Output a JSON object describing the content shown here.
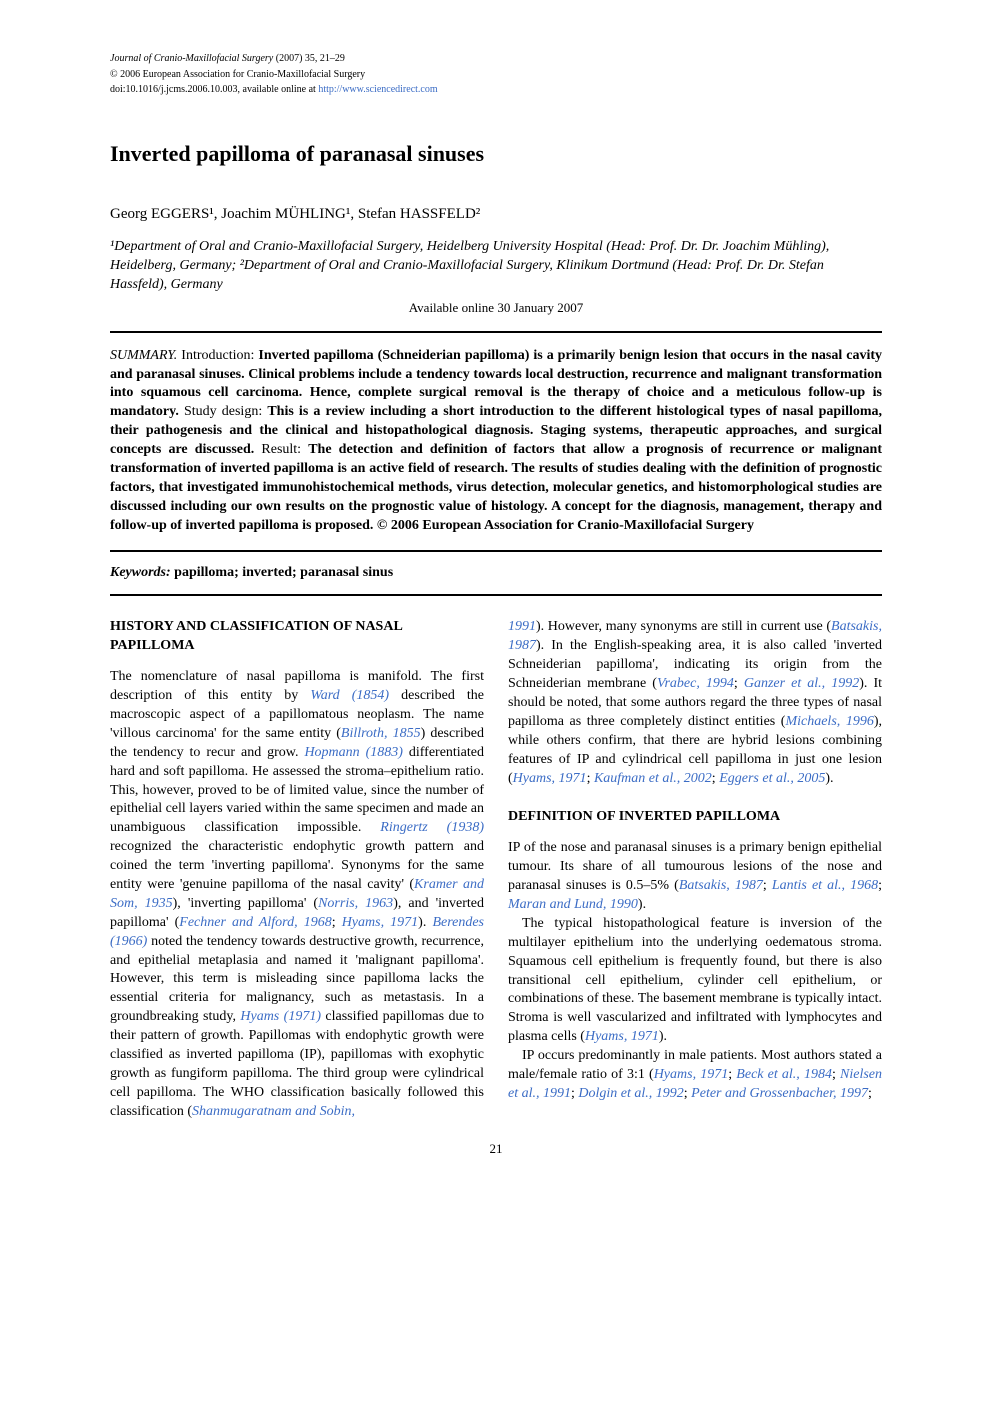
{
  "journal_header": {
    "journal_name": "Journal of Cranio-Maxillofacial Surgery",
    "citation": "(2007) 35, 21–29",
    "copyright": "© 2006 European Association for Cranio-Maxillofacial Surgery",
    "doi_prefix": "doi:10.1016/j.jcms.2006.10.003, available online at ",
    "doi_link": "http://www.sciencedirect.com"
  },
  "article": {
    "title": "Inverted papilloma of paranasal sinuses",
    "authors": "Georg EGGERS¹, Joachim MÜHLING¹, Stefan HASSFELD²",
    "affiliations": "¹Department of Oral and Cranio-Maxillofacial Surgery, Heidelberg University Hospital (Head: Prof. Dr. Dr. Joachim Mühling), Heidelberg, Germany; ²Department of Oral and Cranio-Maxillofacial Surgery, Klinikum Dortmund (Head: Prof. Dr. Dr. Stefan Hassfeld), Germany",
    "available_online": "Available online 30 January 2007"
  },
  "summary": {
    "label1": "SUMMARY.",
    "intro_label": "Introduction:",
    "intro_text": "Inverted papilloma (Schneiderian papilloma) is a primarily benign lesion that occurs in the nasal cavity and paranasal sinuses. Clinical problems include a tendency towards local destruction, recurrence and malignant transformation into squamous cell carcinoma. Hence, complete surgical removal is the therapy of choice and a meticulous follow-up is mandatory.",
    "study_label": "Study design:",
    "study_text": "This is a review including a short introduction to the different histological types of nasal papilloma, their pathogenesis and the clinical and histopathological diagnosis. Staging systems, therapeutic approaches, and surgical concepts are discussed.",
    "result_label": "Result:",
    "result_text": "The detection and definition of factors that allow a prognosis of recurrence or malignant transformation of inverted papilloma is an active field of research. The results of studies dealing with the definition of prognostic factors, that investigated immunohistochemical methods, virus detection, molecular genetics, and histomorphological studies are discussed including our own results on the prognostic value of histology. A concept for the diagnosis, management, therapy and follow-up of inverted papilloma is proposed. © 2006 European Association for Cranio-Maxillofacial Surgery"
  },
  "keywords": {
    "label": "Keywords:",
    "terms": "papilloma; inverted; paranasal sinus"
  },
  "sections": {
    "history": {
      "heading": "HISTORY AND CLASSIFICATION OF NASAL PAPILLOMA",
      "p1_a": "The nomenclature of nasal papilloma is manifold. The first description of this entity by ",
      "c1": "Ward (1854)",
      "p1_b": " described the macroscopic aspect of a papillomatous neoplasm. The name 'villous carcinoma' for the same entity (",
      "c2": "Billroth, 1855",
      "p1_c": ") described the tendency to recur and grow. ",
      "c3": "Hopmann (1883)",
      "p1_d": " differentiated hard and soft papilloma. He assessed the stroma–epithelium ratio. This, however, proved to be of limited value, since the number of epithelial cell layers varied within the same specimen and made an unambiguous classification impossible. ",
      "c4": "Ringertz (1938)",
      "p1_e": " recognized the characteristic endophytic growth pattern and coined the term 'inverting papilloma'. Synonyms for the same entity were 'genuine papilloma of the nasal cavity' (",
      "c5": "Kramer and Som, 1935",
      "p1_f": "), 'inverting papilloma' (",
      "c6": "Norris, 1963",
      "p1_g": "), and 'inverted papilloma' (",
      "c7": "Fechner and Alford, 1968",
      "p1_h": "; ",
      "c8": "Hyams, 1971",
      "p1_i": "). ",
      "c9": "Berendes (1966)",
      "p1_j": " noted the tendency towards destructive growth, recurrence, and epithelial metaplasia and named it 'malignant papilloma'. However, this term is misleading since papilloma lacks the essential criteria for malignancy, such as metastasis. In a groundbreaking study, ",
      "c10": "Hyams (1971)",
      "p1_k": " classified papillomas due to their pattern of growth. Papillomas with endophytic growth were classified as inverted papilloma (IP), papillomas with exophytic growth as fungiform papilloma. The third group were cylindrical cell papilloma. The WHO classification basically followed this classification (",
      "c11": "Shanmugaratnam and Sobin,",
      "c11b": "1991",
      "p1_l": "). However, many synonyms are still in current use (",
      "c12": "Batsakis, 1987",
      "p1_m": "). In the English-speaking area, it is also called 'inverted Schneiderian papilloma', indicating its origin from the Schneiderian membrane (",
      "c13": "Vrabec, 1994",
      "p1_n": "; ",
      "c14": "Ganzer et al., 1992",
      "p1_o": "). It should be noted, that some authors regard the three types of nasal papilloma as three completely distinct entities (",
      "c15": "Michaels, 1996",
      "p1_p": "), while others confirm, that there are hybrid lesions combining features of IP and cylindrical cell papilloma in just one lesion (",
      "c16": "Hyams, 1971",
      "p1_q": "; ",
      "c17": "Kaufman et al., 2002",
      "p1_r": "; ",
      "c18": "Eggers et al., 2005",
      "p1_s": ")."
    },
    "definition": {
      "heading": "DEFINITION OF INVERTED PAPILLOMA",
      "p1_a": "IP of the nose and paranasal sinuses is a primary benign epithelial tumour. Its share of all tumourous lesions of the nose and paranasal sinuses is 0.5–5% (",
      "c1": "Batsakis, 1987",
      "p1_b": "; ",
      "c2": "Lantis et al., 1968",
      "p1_c": "; ",
      "c3": "Maran and Lund, 1990",
      "p1_d": ").",
      "p2_a": "The typical histopathological feature is inversion of the multilayer epithelium into the underlying oedematous stroma. Squamous cell epithelium is frequently found, but there is also transitional cell epithelium, cylinder cell epithelium, or combinations of these. The basement membrane is typically intact. Stroma is well vascularized and infiltrated with lymphocytes and plasma cells (",
      "c4": "Hyams, 1971",
      "p2_b": ").",
      "p3_a": "IP occurs predominantly in male patients. Most authors stated a male/female ratio of 3:1 (",
      "c5": "Hyams, 1971",
      "p3_b": "; ",
      "c6": "Beck et al., 1984",
      "p3_c": "; ",
      "c7": "Nielsen et al., 1991",
      "p3_d": "; ",
      "c8": "Dolgin et al., 1992",
      "p3_e": "; ",
      "c9": "Peter and Grossenbacher, 1997",
      "p3_f": ";"
    }
  },
  "page_number": "21"
}
